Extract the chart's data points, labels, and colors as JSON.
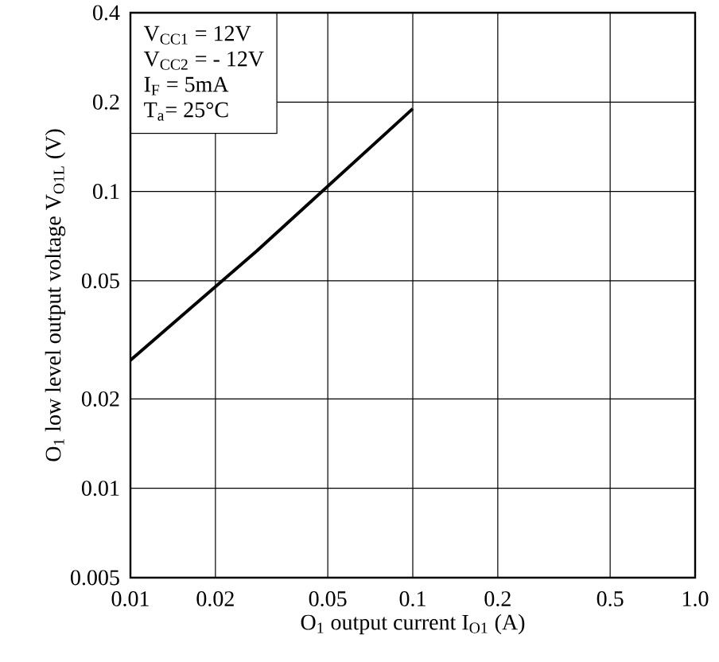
{
  "chart_data": {
    "type": "line",
    "xlabel": "O$_{1}$ output current I$_{O1}$ (A)",
    "ylabel": "O$_{1}$ low level output voltage V$_{O1L}$ (V)",
    "annotations": [
      "V$_{CC1}$ = 12V",
      "V$_{CC2}$ = - 12V",
      "I$_{F}$ = 5mA",
      "T$_{a}$= 25°C"
    ],
    "x": [
      0.01,
      0.028,
      0.1
    ],
    "series": [
      {
        "color": "#000000",
        "values": [
          0.027,
          0.063,
          0.19
        ]
      }
    ],
    "log": "xy",
    "grid": true,
    "marker": "none",
    "line_style": "solid",
    "xlim": [
      0.01,
      1.0
    ],
    "xticks": [
      0.01,
      0.02,
      0.05,
      0.1,
      0.2,
      0.5,
      {
        "value": 1.0,
        "label": "1.0"
      }
    ],
    "ylim": [
      0.005,
      0.4
    ],
    "yticks": [
      0.005,
      0.01,
      0.02,
      0.05,
      0.1,
      0.2,
      0.4
    ]
  }
}
